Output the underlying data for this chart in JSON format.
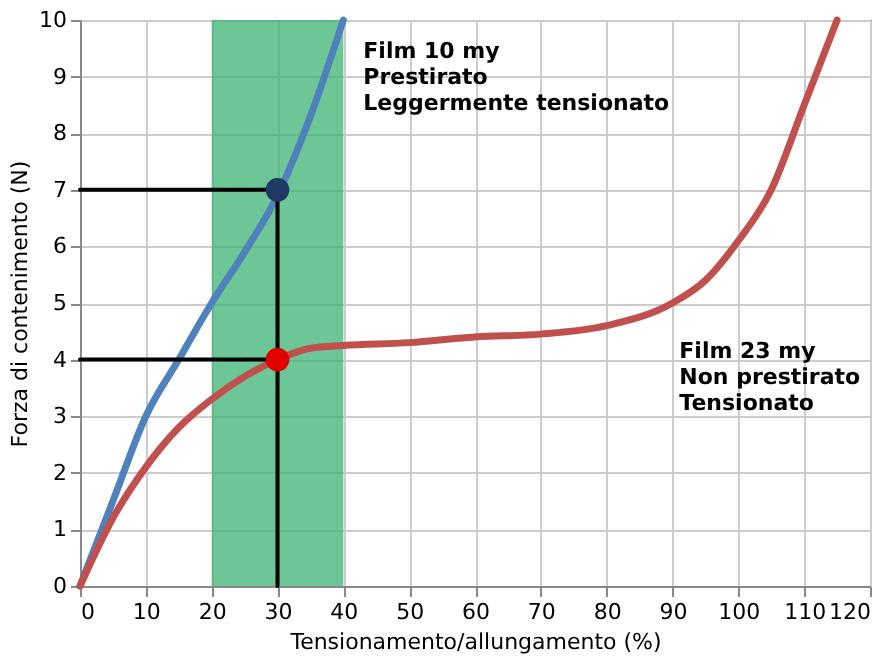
{
  "chart_data": {
    "type": "line",
    "xlabel": "Tensionamento/allungamento (%)",
    "ylabel": "Forza di contenimento (N)",
    "xlim": [
      0,
      120
    ],
    "xticks": [
      0,
      10,
      20,
      30,
      40,
      50,
      60,
      70,
      80,
      90,
      100,
      110,
      120
    ],
    "ylim": [
      0,
      10
    ],
    "yticks": [
      0,
      1,
      2,
      3,
      4,
      5,
      6,
      7,
      8,
      9,
      10
    ],
    "grid": true,
    "bands": [
      {
        "axis": "x",
        "from": 20,
        "to": 40,
        "color": "#3cb371"
      }
    ],
    "series": [
      {
        "color": "#4f81bd",
        "x": [
          0,
          5,
          10,
          15,
          20,
          25,
          30,
          35,
          40
        ],
        "values": [
          0,
          1.5,
          3,
          4,
          5,
          5.9,
          6.9,
          8.3,
          10
        ]
      },
      {
        "color": "#c0504d",
        "x": [
          0,
          5,
          10,
          15,
          20,
          25,
          30,
          35,
          40,
          50,
          60,
          70,
          80,
          90,
          95,
          100,
          105,
          110,
          115
        ],
        "values": [
          0,
          1.2,
          2.1,
          2.8,
          3.3,
          3.7,
          4,
          4.2,
          4.25,
          4.3,
          4.4,
          4.45,
          4.6,
          5,
          5.4,
          6.1,
          7,
          8.5,
          10
        ]
      },
      {
        "type": "line",
        "color": "#000000",
        "x": [
          0,
          30,
          30
        ],
        "values": [
          7,
          7,
          0
        ]
      },
      {
        "type": "line",
        "color": "#000000",
        "x": [
          0,
          30
        ],
        "values": [
          4,
          4
        ]
      },
      {
        "type": "scatter",
        "x": [
          30,
          30
        ],
        "values": [
          7,
          4
        ],
        "colors": [
          "#1f3864",
          "#e00000"
        ]
      }
    ],
    "annotations": [
      {
        "text": "Film 10 my\nPrestirato\nLeggermente tensionato",
        "x": 40,
        "y": 10
      },
      {
        "text": "Film 23 my\nNon prestirato\nTensionato",
        "x": 88,
        "y": 4.7
      }
    ]
  }
}
